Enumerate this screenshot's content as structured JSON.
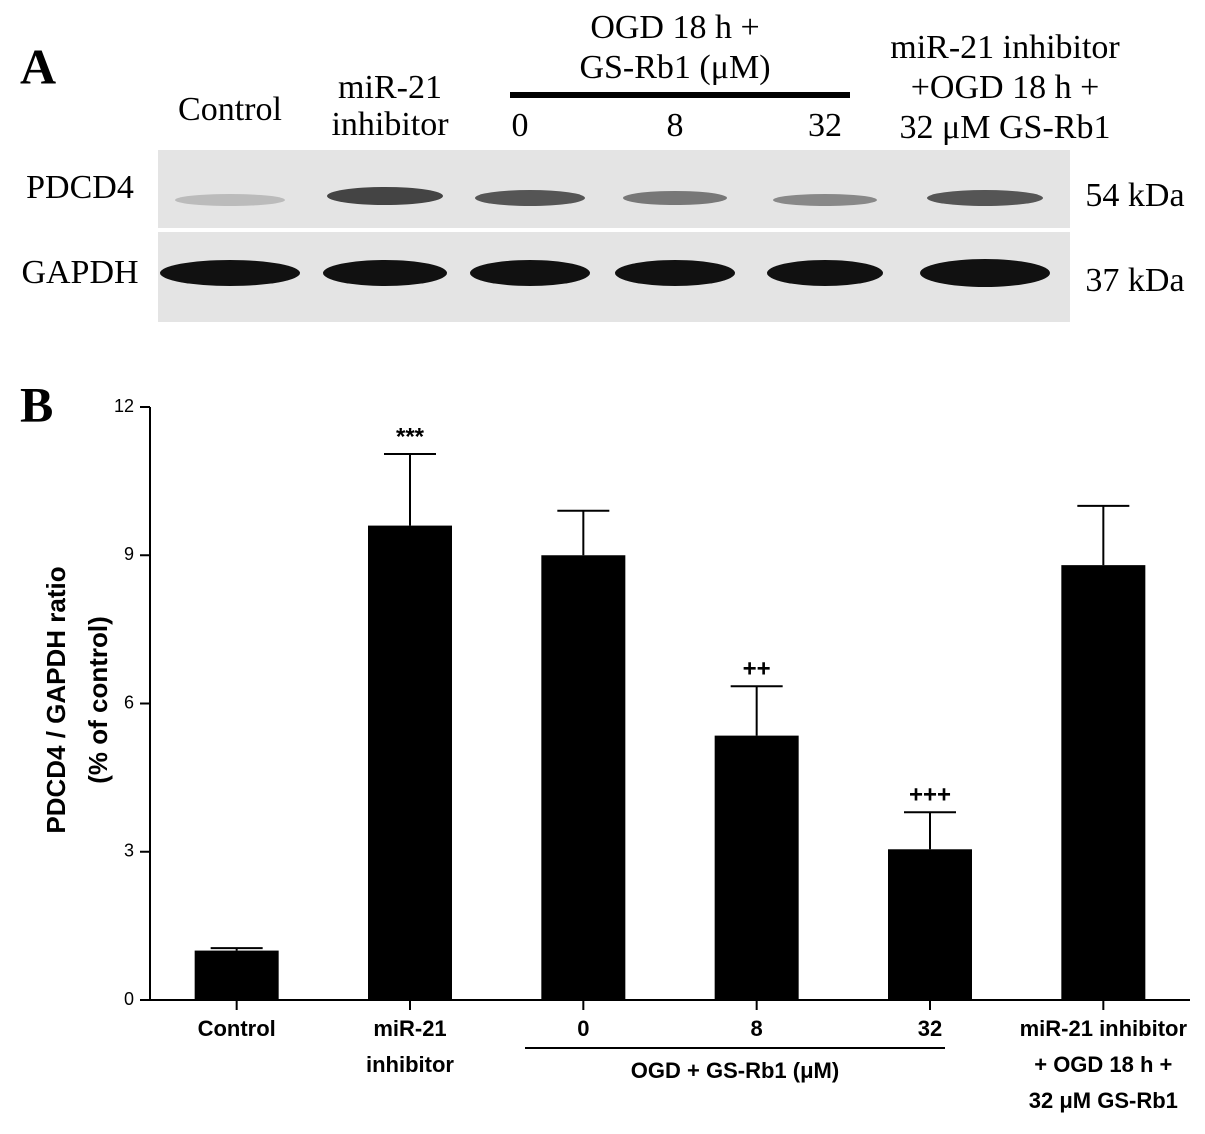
{
  "panel_a": {
    "label": "A",
    "lanes": [
      [
        "Control"
      ],
      [
        "miR-21",
        "inhibitor"
      ],
      [
        "0"
      ],
      [
        "8"
      ],
      [
        "32"
      ],
      [
        "miR-21 inhibitor",
        "+OGD 18 h +",
        "32 μM GS-Rb1"
      ]
    ],
    "group_label": [
      "OGD  18 h +",
      "GS-Rb1 (μM)"
    ],
    "rows": [
      {
        "name": "PDCD4",
        "size": "54 kDa"
      },
      {
        "name": "GAPDH",
        "size": "37 kDa"
      }
    ]
  },
  "chart_data": {
    "type": "bar",
    "panel_label": "B",
    "y_label": [
      "PDCD4 / GAPDH ratio",
      "(% of control)"
    ],
    "categories": [
      [
        "Control"
      ],
      [
        "miR-21",
        "inhibitor"
      ],
      [
        "0"
      ],
      [
        "8"
      ],
      [
        "32"
      ],
      [
        "miR-21 inhibitor",
        "+ OGD 18 h +",
        "32 μM GS-Rb1"
      ]
    ],
    "group_label": "OGD + GS-Rb1  (μM)",
    "values": [
      1.0,
      9.6,
      9.0,
      5.35,
      3.05,
      8.8
    ],
    "errors": [
      0.05,
      1.45,
      0.9,
      1.0,
      0.75,
      1.2
    ],
    "significance": [
      null,
      "***",
      null,
      "++",
      "+++",
      null
    ],
    "color": "#000000",
    "ylim": [
      0,
      12
    ],
    "yticks": [
      0,
      3,
      6,
      9,
      12
    ]
  }
}
